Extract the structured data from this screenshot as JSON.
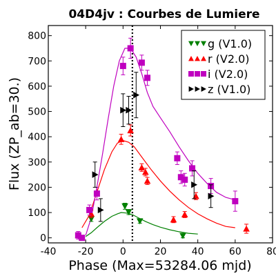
{
  "chart_data": {
    "type": "scatter",
    "title": "04D4jv : Courbes de Lumiere",
    "xlabel": "Phase (Max=53284.06 mjd)",
    "ylabel": "Flux (ZP_ab=30.)",
    "xlim": [
      -40,
      80
    ],
    "ylim": [
      -20,
      840
    ],
    "xticks": [
      -40,
      -20,
      0,
      20,
      40,
      60,
      80
    ],
    "yticks": [
      0,
      100,
      200,
      300,
      400,
      500,
      600,
      700,
      800
    ],
    "grid": false,
    "legend_position": "top-right",
    "max_phase_line": 5,
    "series": [
      {
        "name": "g (V1.0)",
        "color": "#008000",
        "marker": "triangle-down",
        "points": [
          {
            "x": -17,
            "y": 75,
            "e": 10
          },
          {
            "x": 1,
            "y": 125,
            "e": 12
          },
          {
            "x": 3,
            "y": 102,
            "e": 10
          },
          {
            "x": 9,
            "y": 66,
            "e": 8
          },
          {
            "x": 32,
            "y": 8,
            "e": 8
          }
        ],
        "curve": [
          [
            -20,
            5
          ],
          [
            -17,
            20
          ],
          [
            -14,
            40
          ],
          [
            -10,
            65
          ],
          [
            -6,
            85
          ],
          [
            -3,
            95
          ],
          [
            -1,
            100
          ],
          [
            2,
            98
          ],
          [
            5,
            92
          ],
          [
            8,
            80
          ],
          [
            12,
            65
          ],
          [
            16,
            52
          ],
          [
            20,
            42
          ],
          [
            25,
            32
          ],
          [
            30,
            24
          ],
          [
            35,
            18
          ],
          [
            40,
            15
          ]
        ]
      },
      {
        "name": "r (V2.0)",
        "color": "#ff0000",
        "marker": "triangle-up",
        "points": [
          {
            "x": -24,
            "y": 10,
            "e": 10
          },
          {
            "x": -17,
            "y": 95,
            "e": 15
          },
          {
            "x": -1,
            "y": 390,
            "e": 20
          },
          {
            "x": 4,
            "y": 425,
            "e": 22
          },
          {
            "x": 10,
            "y": 278,
            "e": 15
          },
          {
            "x": 12,
            "y": 260,
            "e": 15
          },
          {
            "x": 13,
            "y": 225,
            "e": 14
          },
          {
            "x": 27,
            "y": 72,
            "e": 12
          },
          {
            "x": 33,
            "y": 92,
            "e": 12
          },
          {
            "x": 39,
            "y": 165,
            "e": 14
          },
          {
            "x": 66,
            "y": 36,
            "e": 18
          }
        ],
        "curve": [
          [
            -22,
            40
          ],
          [
            -18,
            90
          ],
          [
            -14,
            180
          ],
          [
            -10,
            270
          ],
          [
            -6,
            340
          ],
          [
            -3,
            375
          ],
          [
            0,
            385
          ],
          [
            3,
            378
          ],
          [
            6,
            360
          ],
          [
            10,
            320
          ],
          [
            15,
            270
          ],
          [
            20,
            225
          ],
          [
            25,
            185
          ],
          [
            30,
            150
          ],
          [
            35,
            120
          ],
          [
            40,
            95
          ],
          [
            45,
            75
          ],
          [
            50,
            58
          ],
          [
            55,
            45
          ],
          [
            60,
            40
          ]
        ]
      },
      {
        "name": "i (V2.0)",
        "color": "#bf00bf",
        "marker": "square",
        "points": [
          {
            "x": -24,
            "y": 10,
            "e": 15
          },
          {
            "x": -22,
            "y": 0,
            "e": 10
          },
          {
            "x": -18,
            "y": 110,
            "e": 20
          },
          {
            "x": -14,
            "y": 175,
            "e": 25
          },
          {
            "x": 0,
            "y": 680,
            "e": 35
          },
          {
            "x": 4,
            "y": 750,
            "e": 40
          },
          {
            "x": 10,
            "y": 693,
            "e": 30
          },
          {
            "x": 13,
            "y": 633,
            "e": 30
          },
          {
            "x": 29,
            "y": 315,
            "e": 25
          },
          {
            "x": 31,
            "y": 240,
            "e": 25
          },
          {
            "x": 33,
            "y": 230,
            "e": 25
          },
          {
            "x": 37,
            "y": 275,
            "e": 30
          },
          {
            "x": 47,
            "y": 205,
            "e": 30
          },
          {
            "x": 60,
            "y": 145,
            "e": 40
          }
        ],
        "curve": [
          [
            -20,
            10
          ],
          [
            -17,
            80
          ],
          [
            -14,
            200
          ],
          [
            -11,
            330
          ],
          [
            -8,
            470
          ],
          [
            -5,
            600
          ],
          [
            -2,
            700
          ],
          [
            1,
            750
          ],
          [
            4,
            750
          ],
          [
            7,
            715
          ],
          [
            10,
            650
          ],
          [
            13,
            575
          ],
          [
            16,
            520
          ],
          [
            20,
            475
          ],
          [
            25,
            420
          ],
          [
            30,
            360
          ],
          [
            35,
            305
          ],
          [
            40,
            255
          ],
          [
            45,
            215
          ],
          [
            50,
            180
          ],
          [
            55,
            160
          ],
          [
            60,
            150
          ]
        ]
      },
      {
        "name": "z (V1.0)",
        "color": "#000000",
        "marker": "triangle-right",
        "points": [
          {
            "x": -15,
            "y": 250,
            "e": 50
          },
          {
            "x": -12,
            "y": 110,
            "e": 45
          },
          {
            "x": 0,
            "y": 505,
            "e": 65
          },
          {
            "x": 3,
            "y": 505,
            "e": 55
          },
          {
            "x": 7,
            "y": 565,
            "e": 90
          },
          {
            "x": 38,
            "y": 210,
            "e": 55
          },
          {
            "x": 47,
            "y": 165,
            "e": 45
          }
        ]
      }
    ]
  }
}
